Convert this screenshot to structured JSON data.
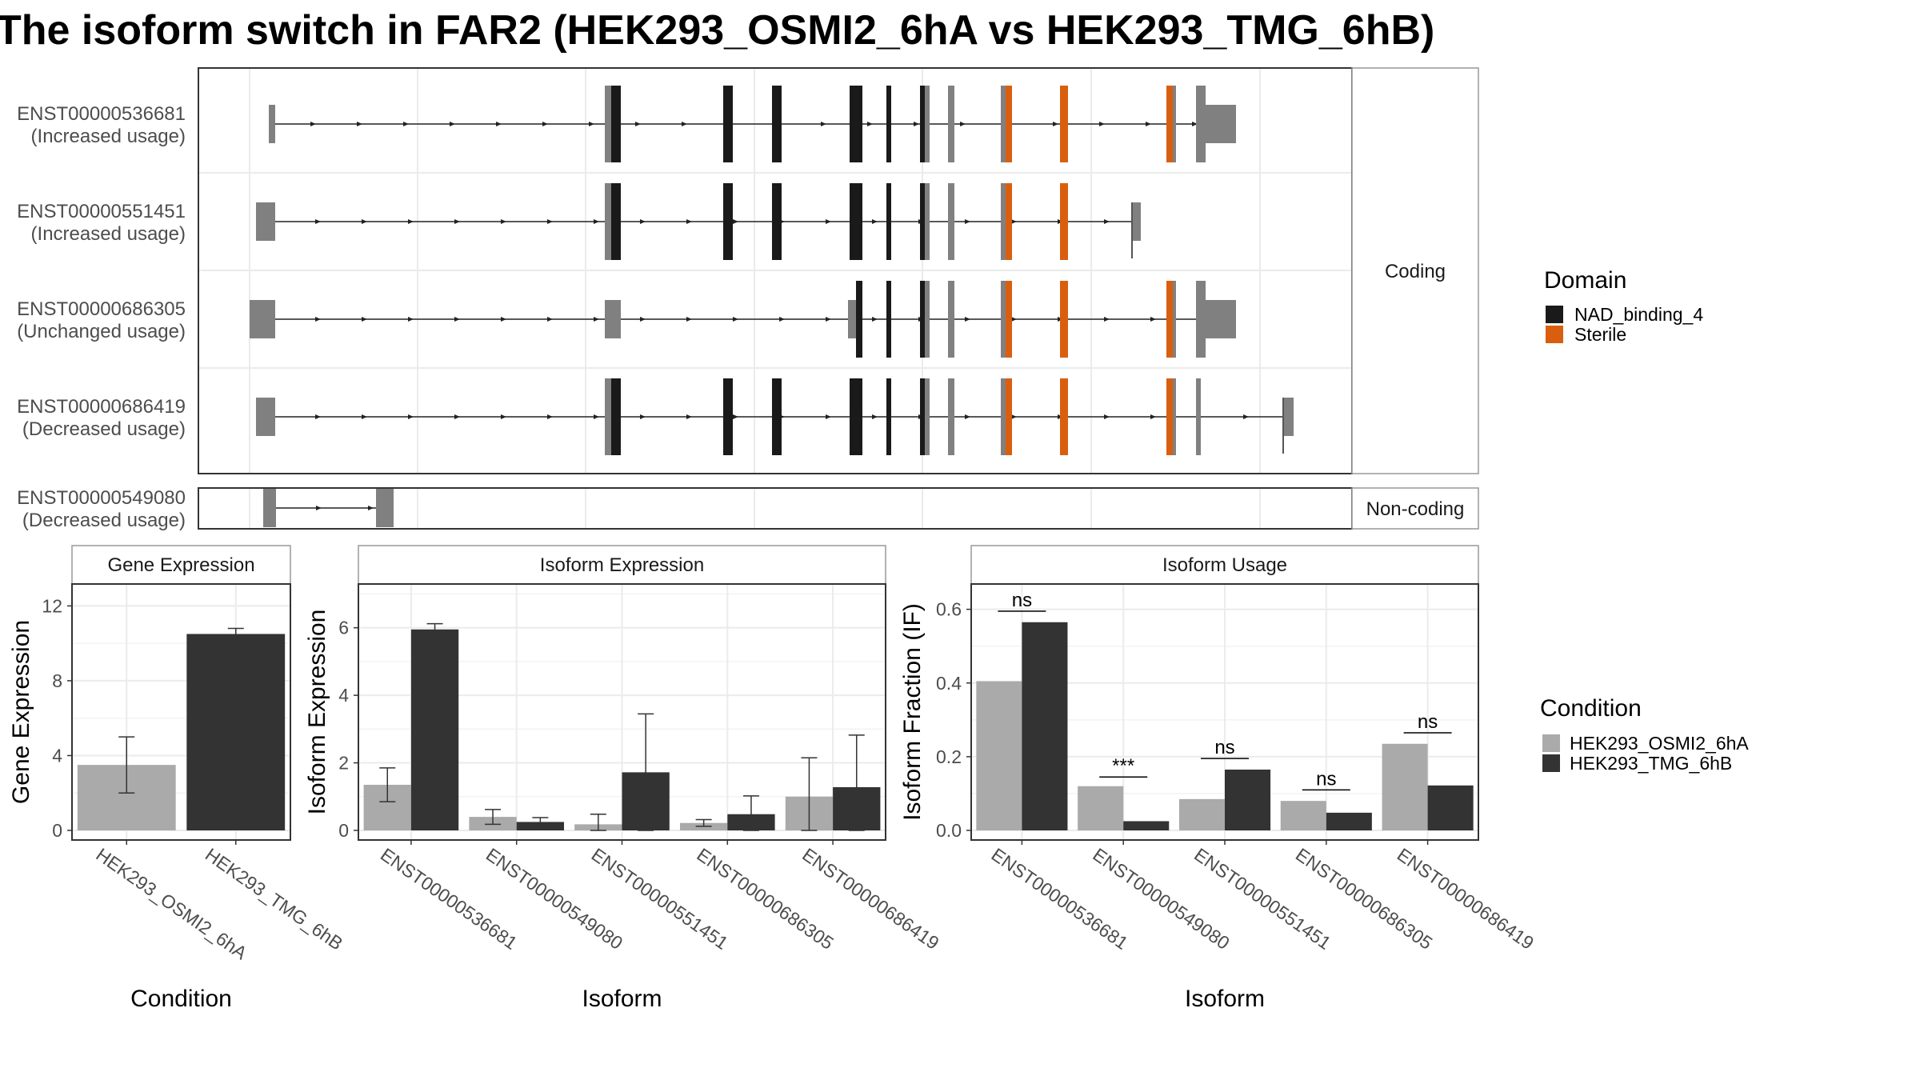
{
  "title": "The isoform switch in FAR2 (HEK293_OSMI2_6hA vs HEK293_TMG_6hB)",
  "colors": {
    "intron_line": "#222222",
    "utr": "#808080",
    "nad_binding_4": "#1a1a1a",
    "sterile": "#d95f0e",
    "cond_a": "#aaaaaa",
    "cond_b": "#333333",
    "grid": "#ebebeb",
    "panel_border": "#333333",
    "strip_bg": "#ffffff"
  },
  "structure": {
    "facet_coding": "Coding",
    "facet_noncoding": "Non-coding",
    "transcripts": [
      {
        "id": "ENST00000536681",
        "usage": "(Increased usage)",
        "group": "coding"
      },
      {
        "id": "ENST00000551451",
        "usage": "(Increased usage)",
        "group": "coding"
      },
      {
        "id": "ENST00000686305",
        "usage": "(Unchanged usage)",
        "group": "coding"
      },
      {
        "id": "ENST00000686419",
        "usage": "(Decreased usage)",
        "group": "coding"
      },
      {
        "id": "ENST00000549080",
        "usage": "(Decreased usage)",
        "group": "noncoding"
      }
    ]
  },
  "legends": {
    "domain_title": "Domain",
    "domain_items": [
      {
        "label": "NAD_binding_4",
        "color": "#1a1a1a"
      },
      {
        "label": "Sterile",
        "color": "#d95f0e"
      }
    ],
    "condition_title": "Condition",
    "condition_items": [
      {
        "label": "HEK293_OSMI2_6hA",
        "color": "#aaaaaa"
      },
      {
        "label": "HEK293_TMG_6hB",
        "color": "#333333"
      }
    ]
  },
  "chart_data": [
    {
      "type": "bar",
      "title": "Gene Expression",
      "xlabel": "Condition",
      "ylabel": "Gene Expression",
      "ylim": [
        0,
        13
      ],
      "yticks": [
        0,
        4,
        8,
        12
      ],
      "categories": [
        "HEK293_OSMI2_6hA",
        "HEK293_TMG_6hB"
      ],
      "values": [
        3.5,
        10.5
      ],
      "error_low": [
        2.0,
        10.2
      ],
      "error_high": [
        5.0,
        10.8
      ]
    },
    {
      "type": "bar",
      "title": "Isoform Expression",
      "xlabel": "Isoform",
      "ylabel": "Isoform Expression",
      "ylim": [
        0,
        7.2
      ],
      "yticks": [
        0,
        2,
        4,
        6
      ],
      "categories": [
        "ENST00000536681",
        "ENST00000549080",
        "ENST00000551451",
        "ENST00000686305",
        "ENST00000686419"
      ],
      "series": [
        {
          "name": "HEK293_OSMI2_6hA",
          "values": [
            1.35,
            0.4,
            0.18,
            0.22,
            1.0
          ],
          "error_low": [
            0.85,
            0.18,
            0.0,
            0.12,
            0.0
          ],
          "error_high": [
            1.85,
            0.62,
            0.48,
            0.32,
            2.15
          ]
        },
        {
          "name": "HEK293_TMG_6hB",
          "values": [
            5.95,
            0.25,
            1.72,
            0.48,
            1.28
          ],
          "error_low": [
            5.78,
            0.12,
            0.0,
            0.0,
            0.0
          ],
          "error_high": [
            6.12,
            0.38,
            3.45,
            1.02,
            2.82
          ]
        }
      ]
    },
    {
      "type": "bar",
      "title": "Isoform Usage",
      "xlabel": "Isoform",
      "ylabel": "Isoform Fraction (IF)",
      "ylim": [
        0,
        0.66
      ],
      "yticks": [
        0.0,
        0.2,
        0.4,
        0.6
      ],
      "ytick_labels": [
        "0.0",
        "0.2",
        "0.4",
        "0.6"
      ],
      "categories": [
        "ENST00000536681",
        "ENST00000549080",
        "ENST00000551451",
        "ENST00000686305",
        "ENST00000686419"
      ],
      "series": [
        {
          "name": "HEK293_OSMI2_6hA",
          "values": [
            0.405,
            0.12,
            0.085,
            0.08,
            0.235
          ]
        },
        {
          "name": "HEK293_TMG_6hB",
          "values": [
            0.565,
            0.025,
            0.165,
            0.048,
            0.122
          ]
        }
      ],
      "significance": [
        "ns",
        "***",
        "ns",
        "ns",
        "ns"
      ],
      "significance_y": [
        0.595,
        0.145,
        0.195,
        0.11,
        0.265
      ]
    }
  ]
}
